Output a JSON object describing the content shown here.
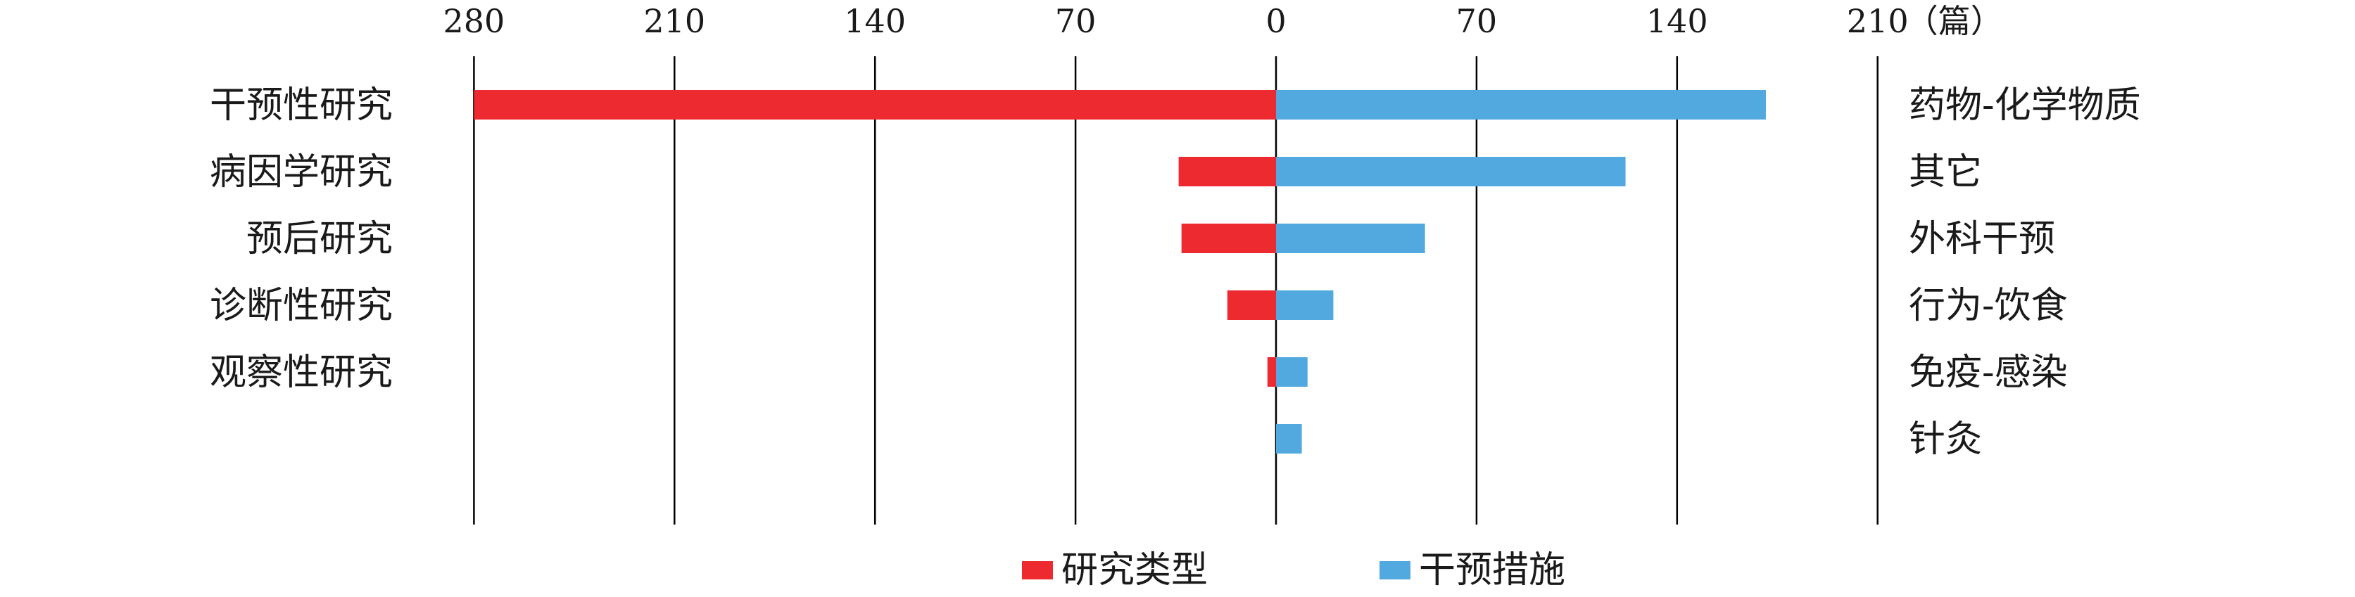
{
  "chart_data": {
    "type": "bar",
    "orientation": "horizontal-diverging",
    "unit": "（篇）",
    "x_tick_labels_left": [
      "280",
      "210",
      "140",
      "70",
      "0"
    ],
    "x_tick_labels_right": [
      "70",
      "140",
      "210"
    ],
    "xlim_left": [
      0,
      280
    ],
    "xlim_right": [
      0,
      210
    ],
    "grid": true,
    "legend_position": "bottom",
    "series": [
      {
        "name": "研究类型",
        "color": "#ec2a30",
        "side": "left",
        "categories": [
          "干预性研究",
          "病因学研究",
          "预后研究",
          "诊断性研究",
          "观察性研究"
        ],
        "values": [
          280,
          34,
          33,
          17,
          3
        ]
      },
      {
        "name": "干预措施",
        "color": "#52a9df",
        "side": "right",
        "categories": [
          "药物-化学物质",
          "其它",
          "外科干预",
          "行为-饮食",
          "免疫-感染",
          "针灸"
        ],
        "values": [
          171,
          122,
          52,
          20,
          11,
          9
        ]
      }
    ]
  }
}
